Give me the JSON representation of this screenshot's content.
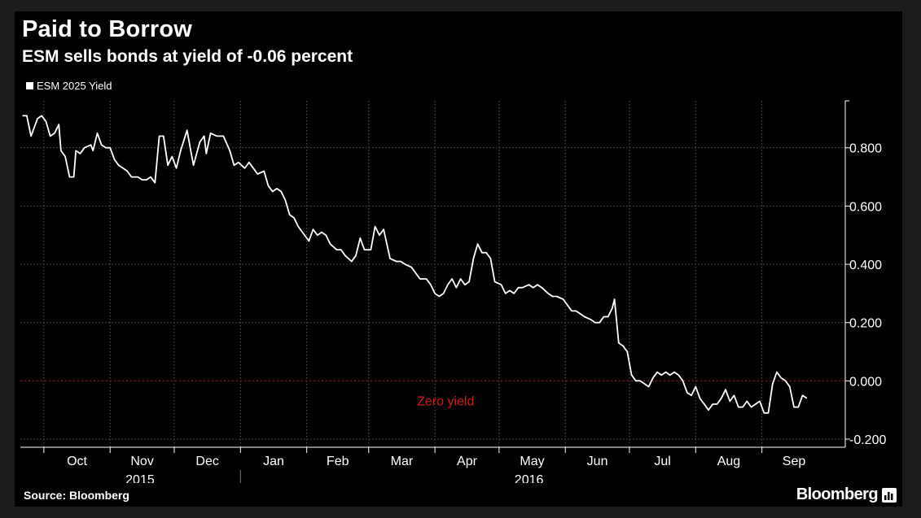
{
  "header": {
    "title": "Paid to Borrow",
    "subtitle": "ESM sells bonds at yield of -0.06 percent"
  },
  "footer": {
    "source": "Source: Bloomberg",
    "brand": "Bloomberg",
    "brand_icon": "bar-chart-icon"
  },
  "colors": {
    "background": "#000000",
    "line": "#ffffff",
    "grid": "#5a5a5a",
    "zero_line": "#8b1a1a",
    "zero_label": "#d01b1b"
  },
  "chart_data": {
    "type": "line",
    "title": "Paid to Borrow",
    "subtitle": "ESM sells bonds at yield of -0.06 percent",
    "xlabel": "",
    "ylabel": "",
    "ylim": [
      -0.2,
      0.95
    ],
    "yticks": [
      0.8,
      0.6,
      0.4,
      0.2,
      0.0,
      -0.2
    ],
    "ytick_labels": [
      "0.800",
      "0.600",
      "0.400",
      "0.200",
      "0.000",
      "-0.200"
    ],
    "y_axis_position": "right",
    "grid": true,
    "legend_position": "top-left",
    "months": [
      {
        "label": "Oct",
        "start": "2015-10-01"
      },
      {
        "label": "Nov",
        "start": "2015-11-01"
      },
      {
        "label": "Dec",
        "start": "2015-12-01"
      },
      {
        "label": "Jan",
        "start": "2016-01-01"
      },
      {
        "label": "Feb",
        "start": "2016-02-01"
      },
      {
        "label": "Mar",
        "start": "2016-03-01"
      },
      {
        "label": "Apr",
        "start": "2016-04-01"
      },
      {
        "label": "May",
        "start": "2016-05-01"
      },
      {
        "label": "Jun",
        "start": "2016-06-01"
      },
      {
        "label": "Jul",
        "start": "2016-07-01"
      },
      {
        "label": "Aug",
        "start": "2016-08-01"
      },
      {
        "label": "Sep",
        "start": "2016-09-01"
      }
    ],
    "x_range": [
      "2015-09-20",
      "2016-10-10"
    ],
    "years": [
      {
        "label": "2015",
        "date": "2015-11-15"
      },
      {
        "label": "2016",
        "date": "2016-05-15"
      }
    ],
    "year_divider": "2016-01-01",
    "annotations": [
      {
        "text": "Zero yield",
        "date": "2016-04-06",
        "y": -0.07,
        "color": "#d01b1b"
      }
    ],
    "reference_lines": [
      {
        "y": 0.0,
        "style": "dashed",
        "color": "#8b1a1a"
      }
    ],
    "series": [
      {
        "name": "ESM 2025 Yield",
        "color": "#ffffff",
        "points": [
          [
            "2015-09-21",
            0.91
          ],
          [
            "2015-09-23",
            0.91
          ],
          [
            "2015-09-25",
            0.84
          ],
          [
            "2015-09-28",
            0.9
          ],
          [
            "2015-09-30",
            0.91
          ],
          [
            "2015-10-02",
            0.89
          ],
          [
            "2015-10-04",
            0.84
          ],
          [
            "2015-10-06",
            0.85
          ],
          [
            "2015-10-08",
            0.88
          ],
          [
            "2015-10-09",
            0.79
          ],
          [
            "2015-10-11",
            0.77
          ],
          [
            "2015-10-13",
            0.7
          ],
          [
            "2015-10-15",
            0.7
          ],
          [
            "2015-10-16",
            0.79
          ],
          [
            "2015-10-18",
            0.78
          ],
          [
            "2015-10-20",
            0.8
          ],
          [
            "2015-10-23",
            0.81
          ],
          [
            "2015-10-24",
            0.79
          ],
          [
            "2015-10-26",
            0.85
          ],
          [
            "2015-10-28",
            0.81
          ],
          [
            "2015-10-30",
            0.8
          ],
          [
            "2015-11-01",
            0.8
          ],
          [
            "2015-11-03",
            0.76
          ],
          [
            "2015-11-05",
            0.74
          ],
          [
            "2015-11-07",
            0.73
          ],
          [
            "2015-11-09",
            0.72
          ],
          [
            "2015-11-11",
            0.7
          ],
          [
            "2015-11-13",
            0.7
          ],
          [
            "2015-11-14",
            0.7
          ],
          [
            "2015-11-16",
            0.69
          ],
          [
            "2015-11-18",
            0.69
          ],
          [
            "2015-11-20",
            0.7
          ],
          [
            "2015-11-22",
            0.68
          ],
          [
            "2015-11-24",
            0.84
          ],
          [
            "2015-11-26",
            0.84
          ],
          [
            "2015-11-28",
            0.74
          ],
          [
            "2015-11-30",
            0.77
          ],
          [
            "2015-12-02",
            0.73
          ],
          [
            "2015-12-04",
            0.79
          ],
          [
            "2015-12-07",
            0.86
          ],
          [
            "2015-12-09",
            0.78
          ],
          [
            "2015-12-10",
            0.74
          ],
          [
            "2015-12-13",
            0.82
          ],
          [
            "2015-12-15",
            0.84
          ],
          [
            "2015-12-16",
            0.78
          ],
          [
            "2015-12-18",
            0.85
          ],
          [
            "2015-12-21",
            0.84
          ],
          [
            "2015-12-24",
            0.84
          ],
          [
            "2015-12-27",
            0.79
          ],
          [
            "2015-12-29",
            0.74
          ],
          [
            "2015-12-31",
            0.75
          ],
          [
            "2016-01-03",
            0.73
          ],
          [
            "2016-01-05",
            0.75
          ],
          [
            "2016-01-07",
            0.73
          ],
          [
            "2016-01-09",
            0.71
          ],
          [
            "2016-01-12",
            0.72
          ],
          [
            "2016-01-14",
            0.67
          ],
          [
            "2016-01-16",
            0.65
          ],
          [
            "2016-01-18",
            0.66
          ],
          [
            "2016-01-20",
            0.65
          ],
          [
            "2016-01-22",
            0.62
          ],
          [
            "2016-01-24",
            0.57
          ],
          [
            "2016-01-26",
            0.56
          ],
          [
            "2016-01-28",
            0.53
          ],
          [
            "2016-01-30",
            0.51
          ],
          [
            "2016-02-02",
            0.48
          ],
          [
            "2016-02-04",
            0.52
          ],
          [
            "2016-02-06",
            0.5
          ],
          [
            "2016-02-08",
            0.51
          ],
          [
            "2016-02-10",
            0.5
          ],
          [
            "2016-02-12",
            0.47
          ],
          [
            "2016-02-15",
            0.45
          ],
          [
            "2016-02-17",
            0.45
          ],
          [
            "2016-02-19",
            0.43
          ],
          [
            "2016-02-22",
            0.41
          ],
          [
            "2016-02-24",
            0.43
          ],
          [
            "2016-02-26",
            0.49
          ],
          [
            "2016-02-28",
            0.45
          ],
          [
            "2016-03-02",
            0.45
          ],
          [
            "2016-03-04",
            0.53
          ],
          [
            "2016-03-06",
            0.5
          ],
          [
            "2016-03-08",
            0.52
          ],
          [
            "2016-03-11",
            0.42
          ],
          [
            "2016-03-14",
            0.41
          ],
          [
            "2016-03-16",
            0.41
          ],
          [
            "2016-03-18",
            0.4
          ],
          [
            "2016-03-21",
            0.39
          ],
          [
            "2016-03-23",
            0.37
          ],
          [
            "2016-03-25",
            0.35
          ],
          [
            "2016-03-28",
            0.35
          ],
          [
            "2016-03-30",
            0.33
          ],
          [
            "2016-04-01",
            0.3
          ],
          [
            "2016-04-03",
            0.29
          ],
          [
            "2016-04-05",
            0.3
          ],
          [
            "2016-04-07",
            0.33
          ],
          [
            "2016-04-09",
            0.35
          ],
          [
            "2016-04-11",
            0.32
          ],
          [
            "2016-04-13",
            0.35
          ],
          [
            "2016-04-15",
            0.33
          ],
          [
            "2016-04-17",
            0.34
          ],
          [
            "2016-04-19",
            0.42
          ],
          [
            "2016-04-21",
            0.47
          ],
          [
            "2016-04-23",
            0.44
          ],
          [
            "2016-04-25",
            0.44
          ],
          [
            "2016-04-27",
            0.42
          ],
          [
            "2016-04-29",
            0.34
          ],
          [
            "2016-05-02",
            0.33
          ],
          [
            "2016-05-04",
            0.3
          ],
          [
            "2016-05-06",
            0.31
          ],
          [
            "2016-05-08",
            0.3
          ],
          [
            "2016-05-10",
            0.32
          ],
          [
            "2016-05-12",
            0.32
          ],
          [
            "2016-05-15",
            0.33
          ],
          [
            "2016-05-17",
            0.32
          ],
          [
            "2016-05-19",
            0.33
          ],
          [
            "2016-05-21",
            0.32
          ],
          [
            "2016-05-24",
            0.3
          ],
          [
            "2016-05-26",
            0.29
          ],
          [
            "2016-05-28",
            0.29
          ],
          [
            "2016-05-31",
            0.28
          ],
          [
            "2016-06-02",
            0.26
          ],
          [
            "2016-06-04",
            0.24
          ],
          [
            "2016-06-06",
            0.24
          ],
          [
            "2016-06-08",
            0.23
          ],
          [
            "2016-06-10",
            0.22
          ],
          [
            "2016-06-13",
            0.21
          ],
          [
            "2016-06-15",
            0.2
          ],
          [
            "2016-06-17",
            0.2
          ],
          [
            "2016-06-19",
            0.22
          ],
          [
            "2016-06-21",
            0.22
          ],
          [
            "2016-06-23",
            0.25
          ],
          [
            "2016-06-24",
            0.28
          ],
          [
            "2016-06-26",
            0.13
          ],
          [
            "2016-06-28",
            0.12
          ],
          [
            "2016-06-30",
            0.1
          ],
          [
            "2016-07-02",
            0.02
          ],
          [
            "2016-07-04",
            0.0
          ],
          [
            "2016-07-06",
            0.0
          ],
          [
            "2016-07-08",
            -0.01
          ],
          [
            "2016-07-10",
            -0.02
          ],
          [
            "2016-07-12",
            0.01
          ],
          [
            "2016-07-14",
            0.03
          ],
          [
            "2016-07-16",
            0.02
          ],
          [
            "2016-07-18",
            0.03
          ],
          [
            "2016-07-20",
            0.02
          ],
          [
            "2016-07-22",
            0.03
          ],
          [
            "2016-07-24",
            0.02
          ],
          [
            "2016-07-26",
            0.0
          ],
          [
            "2016-07-28",
            -0.04
          ],
          [
            "2016-07-30",
            -0.05
          ],
          [
            "2016-08-01",
            -0.02
          ],
          [
            "2016-08-03",
            -0.06
          ],
          [
            "2016-08-05",
            -0.08
          ],
          [
            "2016-08-07",
            -0.1
          ],
          [
            "2016-08-09",
            -0.08
          ],
          [
            "2016-08-11",
            -0.08
          ],
          [
            "2016-08-13",
            -0.06
          ],
          [
            "2016-08-15",
            -0.03
          ],
          [
            "2016-08-17",
            -0.07
          ],
          [
            "2016-08-19",
            -0.05
          ],
          [
            "2016-08-21",
            -0.09
          ],
          [
            "2016-08-23",
            -0.09
          ],
          [
            "2016-08-25",
            -0.07
          ],
          [
            "2016-08-27",
            -0.09
          ],
          [
            "2016-08-29",
            -0.08
          ],
          [
            "2016-08-31",
            -0.07
          ],
          [
            "2016-09-02",
            -0.11
          ],
          [
            "2016-09-04",
            -0.11
          ],
          [
            "2016-09-06",
            -0.01
          ],
          [
            "2016-09-08",
            0.03
          ],
          [
            "2016-09-10",
            0.01
          ],
          [
            "2016-09-12",
            0.0
          ],
          [
            "2016-09-14",
            -0.02
          ],
          [
            "2016-09-16",
            -0.09
          ],
          [
            "2016-09-18",
            -0.09
          ],
          [
            "2016-09-20",
            -0.05
          ],
          [
            "2016-09-22",
            -0.06
          ]
        ]
      }
    ]
  }
}
